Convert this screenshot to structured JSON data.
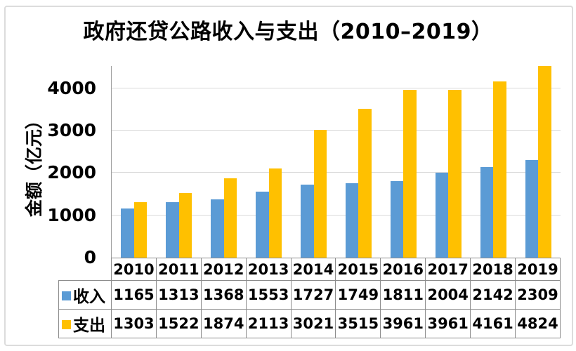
{
  "title": "政府还贷公路收入与支出（2010–2019）",
  "y_axis_title": "金额（亿元）",
  "chart_data": {
    "type": "bar",
    "title": "政府还贷公路收入与支出（2010–2019）",
    "categories": [
      "2010",
      "2011",
      "2012",
      "2013",
      "2014",
      "2015",
      "2016",
      "2017",
      "2018",
      "2019"
    ],
    "series": [
      {
        "name": "收入",
        "key": "income",
        "color": "#5B9BD5",
        "values": [
          1165,
          1313,
          1368,
          1553,
          1727,
          1749,
          1811,
          2004,
          2142,
          2309
        ]
      },
      {
        "name": "支出",
        "key": "expense",
        "color": "#FFC000",
        "values": [
          1303,
          1522,
          1874,
          2113,
          3021,
          3515,
          3961,
          3961,
          4161,
          4824
        ]
      }
    ],
    "xlabel": "",
    "ylabel": "金额（亿元）",
    "y_ticks": [
      0,
      1000,
      2000,
      3000,
      4000
    ],
    "ylim": [
      0,
      4525
    ],
    "grid": true,
    "legend_position": "data-table-below-plot"
  },
  "colors": {
    "income": "#5B9BD5",
    "expense": "#FFC000",
    "gridline": "#d9d9d9",
    "axis_line": "#9e9e9e",
    "table_border": "#8c8c8c",
    "frame_border": "#dcdcdc",
    "text": "#000000",
    "background": "#ffffff"
  }
}
